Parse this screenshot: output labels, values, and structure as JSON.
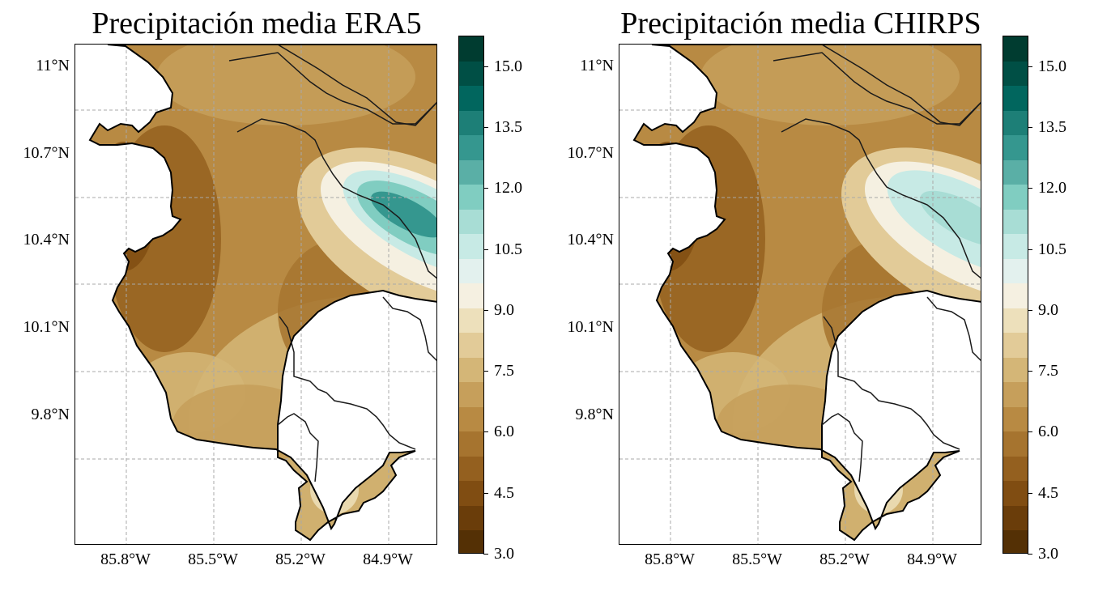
{
  "colors": {
    "brown_dark": "#543005",
    "brown": "#8c5a1f",
    "tan": "#c9a066",
    "light_tan": "#e6cf9c",
    "cream": "#f5f0e1",
    "teal_light": "#c7eae5",
    "teal": "#80cdc1",
    "teal_mid": "#35978f",
    "teal_dark": "#01665e",
    "teal_darkest": "#003c30"
  },
  "maps": [
    {
      "title": "Precipitación media ERA5",
      "lat_ticks": [
        "11°N",
        "10.7°N",
        "10.4°N",
        "10.1°N",
        "9.8°N"
      ],
      "lon_ticks": [
        "85.8°W",
        "85.5°W",
        "85.2°W",
        "84.9°W"
      ],
      "colorbar": {
        "min": 3.0,
        "max": 15.75,
        "ticks": [
          "15.0",
          "13.5",
          "12.0",
          "10.5",
          "9.0",
          "7.5",
          "6.0",
          "4.5",
          "3.0"
        ]
      },
      "wet_anomaly": "strong"
    },
    {
      "title": "Precipitación media CHIRPS",
      "lat_ticks": [
        "11°N",
        "10.7°N",
        "10.4°N",
        "10.1°N",
        "9.8°N"
      ],
      "lon_ticks": [
        "85.8°W",
        "85.5°W",
        "85.2°W",
        "84.9°W"
      ],
      "colorbar": {
        "min": 3.0,
        "max": 15.75,
        "ticks": [
          "15.0",
          "13.5",
          "12.0",
          "10.5",
          "9.0",
          "7.5",
          "6.0",
          "4.5",
          "3.0"
        ]
      },
      "wet_anomaly": "moderate"
    }
  ]
}
